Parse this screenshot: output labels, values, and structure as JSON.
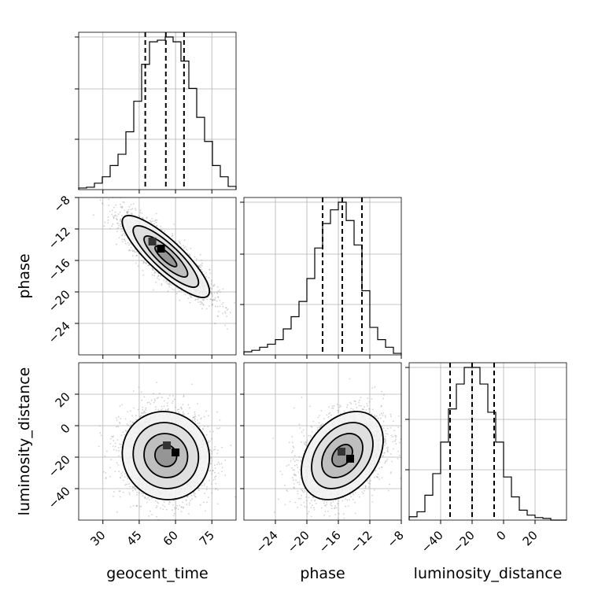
{
  "chart_data": {
    "type": "corner",
    "parameters": [
      {
        "name": "geocent_time",
        "xlabel": "geocent_time",
        "range": [
          20,
          85
        ],
        "ticks": [
          30,
          45,
          60,
          75
        ],
        "quantiles": [
          47.5,
          56.0,
          63.5
        ],
        "histogram": {
          "bin_width": 3.25,
          "counts": [
            0.01,
            0.015,
            0.04,
            0.08,
            0.15,
            0.22,
            0.36,
            0.55,
            0.78,
            0.92,
            0.93,
            0.95,
            0.92,
            0.8,
            0.63,
            0.45,
            0.3,
            0.15,
            0.08,
            0.02
          ]
        }
      },
      {
        "name": "phase",
        "xlabel": "phase",
        "ylabel": "phase",
        "range": [
          -28,
          -8
        ],
        "ticks": [
          -24,
          -20,
          -16,
          -12,
          -8
        ],
        "quantiles": [
          -18.0,
          -15.5,
          -13.0
        ],
        "histogram": {
          "bin_width": 1.0,
          "counts": [
            0.02,
            0.03,
            0.05,
            0.07,
            0.1,
            0.17,
            0.25,
            0.35,
            0.5,
            0.7,
            0.86,
            0.95,
            1.0,
            0.88,
            0.72,
            0.42,
            0.18,
            0.1,
            0.05,
            0.01
          ]
        }
      },
      {
        "name": "luminosity_distance",
        "xlabel": "luminosity_distance",
        "ylabel": "luminosity_distance",
        "range": [
          -60,
          40
        ],
        "ticks": [
          -40,
          -20,
          0,
          20
        ],
        "quantiles": [
          -34.0,
          -20.0,
          -6.0
        ],
        "histogram": {
          "bin_width": 5.0,
          "counts": [
            0.02,
            0.05,
            0.15,
            0.28,
            0.47,
            0.67,
            0.82,
            0.92,
            0.92,
            0.82,
            0.65,
            0.47,
            0.26,
            0.14,
            0.06,
            0.03,
            0.015,
            0.01,
            0.0,
            0.0
          ]
        }
      }
    ],
    "joint": [
      {
        "x": "geocent_time",
        "y": "phase",
        "x_center": 56.0,
        "y_center": -15.5,
        "x_std": 9.0,
        "y_std": 2.6,
        "correlation": -0.85,
        "peak": [
          54.0,
          -14.5
        ],
        "contour_levels": [
          "0.5 sigma",
          "1 sigma",
          "1.5 sigma",
          "2 sigma"
        ]
      },
      {
        "x": "geocent_time",
        "y": "luminosity_distance",
        "x_center": 56.0,
        "y_center": -19.0,
        "x_std": 9.0,
        "y_std": 14.0,
        "correlation": -0.05,
        "peak": [
          60.0,
          -17.0
        ],
        "contour_levels": [
          "0.5 sigma",
          "1 sigma",
          "1.5 sigma",
          "2 sigma"
        ]
      },
      {
        "x": "phase",
        "y": "luminosity_distance",
        "x_center": -15.5,
        "y_center": -19.0,
        "x_std": 2.6,
        "y_std": 14.0,
        "correlation": 0.35,
        "peak": [
          -14.5,
          -21.0
        ],
        "contour_levels": [
          "0.5 sigma",
          "1 sigma",
          "1.5 sigma",
          "2 sigma"
        ]
      }
    ],
    "grid": true
  }
}
